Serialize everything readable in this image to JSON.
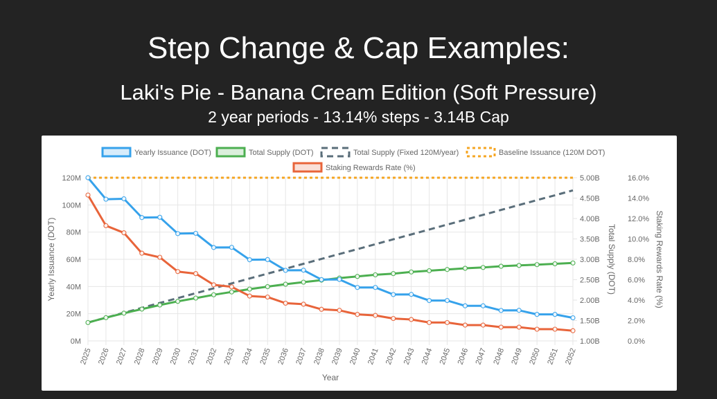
{
  "slide": {
    "title": "Step Change & Cap Examples:",
    "subtitle": "Laki's Pie - Banana Cream Edition (Soft Pressure)",
    "subtitle2": "2 year periods - 13.14% steps - 3.14B Cap"
  },
  "chart_data": {
    "type": "line",
    "xlabel": "Year",
    "y_left_label": "Yearly Issuance (DOT)",
    "y_right1_label": "Total Supply (DOT)",
    "y_right2_label": "Staking Rewards Rate (%)",
    "x": [
      "2025",
      "2026",
      "2027",
      "2028",
      "2029",
      "2030",
      "2031",
      "2032",
      "2033",
      "2034",
      "2035",
      "2036",
      "2037",
      "2038",
      "2039",
      "2040",
      "2041",
      "2042",
      "2043",
      "2044",
      "2045",
      "2046",
      "2047",
      "2048",
      "2049",
      "2050",
      "2051",
      "2052"
    ],
    "axes": {
      "left": {
        "min": 0,
        "max": 120,
        "ticks": [
          0,
          20,
          40,
          60,
          80,
          100,
          120
        ],
        "tick_labels": [
          "0M",
          "20M",
          "40M",
          "60M",
          "80M",
          "100M",
          "120M"
        ]
      },
      "right1": {
        "min": 1.0,
        "max": 5.0,
        "ticks": [
          1.0,
          1.5,
          2.0,
          2.5,
          3.0,
          3.5,
          4.0,
          4.5,
          5.0
        ],
        "tick_labels": [
          "1.00B",
          "1.50B",
          "2.00B",
          "2.50B",
          "3.00B",
          "3.50B",
          "4.00B",
          "4.50B",
          "5.00B"
        ]
      },
      "right2": {
        "min": 0,
        "max": 16,
        "ticks": [
          0,
          2,
          4,
          6,
          8,
          10,
          12,
          14,
          16
        ],
        "tick_labels": [
          "0.0%",
          "2.0%",
          "4.0%",
          "6.0%",
          "8.0%",
          "10.0%",
          "12.0%",
          "14.0%",
          "16.0%"
        ]
      }
    },
    "grid": true,
    "legend_position": "top",
    "series": [
      {
        "name": "Yearly Issuance (DOT)",
        "axis": "left",
        "color": "#36a2eb",
        "style": "solid",
        "points": true,
        "values": [
          120,
          104.2,
          104.5,
          90.7,
          90.9,
          78.9,
          79.1,
          68.7,
          68.8,
          59.7,
          59.8,
          51.9,
          52.0,
          45.1,
          45.2,
          39.3,
          39.3,
          34.1,
          34.2,
          29.7,
          29.7,
          25.8,
          25.8,
          22.4,
          22.5,
          19.5,
          19.5,
          17.0
        ]
      },
      {
        "name": "Total Supply (DOT)",
        "axis": "right1",
        "color": "#4caf50",
        "style": "solid",
        "points": true,
        "values": [
          1.45,
          1.57,
          1.68,
          1.78,
          1.88,
          1.97,
          2.05,
          2.13,
          2.2,
          2.27,
          2.33,
          2.39,
          2.44,
          2.49,
          2.54,
          2.58,
          2.62,
          2.65,
          2.69,
          2.72,
          2.75,
          2.78,
          2.8,
          2.83,
          2.85,
          2.87,
          2.89,
          2.91
        ]
      },
      {
        "name": "Total Supply (Fixed 120M/year)",
        "axis": "right1",
        "color": "#5a6e7a",
        "style": "dashed",
        "points": false,
        "values": [
          1.45,
          1.57,
          1.69,
          1.81,
          1.93,
          2.05,
          2.17,
          2.29,
          2.41,
          2.53,
          2.65,
          2.77,
          2.89,
          3.01,
          3.13,
          3.25,
          3.37,
          3.49,
          3.61,
          3.73,
          3.85,
          3.97,
          4.09,
          4.21,
          4.33,
          4.45,
          4.57,
          4.69
        ]
      },
      {
        "name": "Baseline Issuance (120M DOT)",
        "axis": "left",
        "color": "#f5a623",
        "style": "dotted",
        "points": false,
        "values": [
          120,
          120,
          120,
          120,
          120,
          120,
          120,
          120,
          120,
          120,
          120,
          120,
          120,
          120,
          120,
          120,
          120,
          120,
          120,
          120,
          120,
          120,
          120,
          120,
          120,
          120,
          120,
          120
        ]
      },
      {
        "name": "Staking Rewards Rate (%)",
        "axis": "right2",
        "color": "#e8643a",
        "style": "solid",
        "points": true,
        "values": [
          14.3,
          11.3,
          10.6,
          8.6,
          8.2,
          6.8,
          6.6,
          5.5,
          5.3,
          4.4,
          4.3,
          3.7,
          3.6,
          3.1,
          3.0,
          2.6,
          2.5,
          2.2,
          2.1,
          1.8,
          1.8,
          1.55,
          1.55,
          1.35,
          1.35,
          1.15,
          1.15,
          1.0
        ]
      }
    ]
  }
}
